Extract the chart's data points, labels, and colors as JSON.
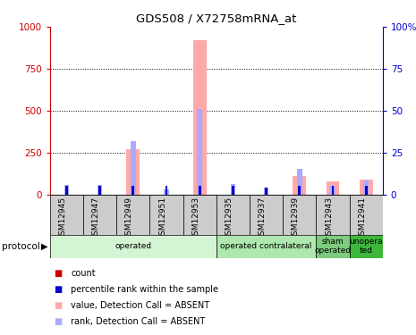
{
  "title": "GDS508 / X72758mRNA_at",
  "samples": [
    "GSM12945",
    "GSM12947",
    "GSM12949",
    "GSM12951",
    "GSM12953",
    "GSM12935",
    "GSM12937",
    "GSM12939",
    "GSM12943",
    "GSM12941"
  ],
  "values_absent": [
    0,
    0,
    270,
    0,
    920,
    0,
    0,
    110,
    80,
    90
  ],
  "rank_absent_pct": [
    5.5,
    5.5,
    32,
    3,
    51,
    6,
    4,
    15,
    5,
    8.5
  ],
  "count_values": [
    30,
    30,
    5,
    5,
    5,
    30,
    25,
    5,
    5,
    5
  ],
  "count_rank_pct": [
    5,
    5,
    5,
    5,
    5,
    5,
    4,
    5,
    5,
    5
  ],
  "ylim_left": [
    0,
    1000
  ],
  "ylim_right": [
    0,
    100
  ],
  "yticks_left": [
    0,
    250,
    500,
    750,
    1000
  ],
  "yticks_right": [
    0,
    25,
    50,
    75,
    100
  ],
  "protocols": [
    {
      "label": "operated",
      "start": 0,
      "end": 5,
      "color": "#d4f5d4"
    },
    {
      "label": "operated contralateral",
      "start": 5,
      "end": 8,
      "color": "#aee8ae"
    },
    {
      "label": "sham\noperated",
      "start": 8,
      "end": 9,
      "color": "#7dcc7d"
    },
    {
      "label": "unopera\nted",
      "start": 9,
      "end": 10,
      "color": "#3db83d"
    }
  ],
  "value_bar_width": 0.4,
  "rank_bar_width": 0.15,
  "count_bar_width": 0.08,
  "value_color_absent": "#ffaaaa",
  "rank_color_absent": "#aaaaff",
  "count_color": "#cc0000",
  "count_rank_color": "#0000cc",
  "sample_bg_color": "#cccccc",
  "left_axis_color": "#cc0000",
  "right_axis_color": "#0000cc",
  "legend_items": [
    {
      "color": "#cc0000",
      "label": "count"
    },
    {
      "color": "#0000cc",
      "label": "percentile rank within the sample"
    },
    {
      "color": "#ffaaaa",
      "label": "value, Detection Call = ABSENT"
    },
    {
      "color": "#aaaaff",
      "label": "rank, Detection Call = ABSENT"
    }
  ]
}
